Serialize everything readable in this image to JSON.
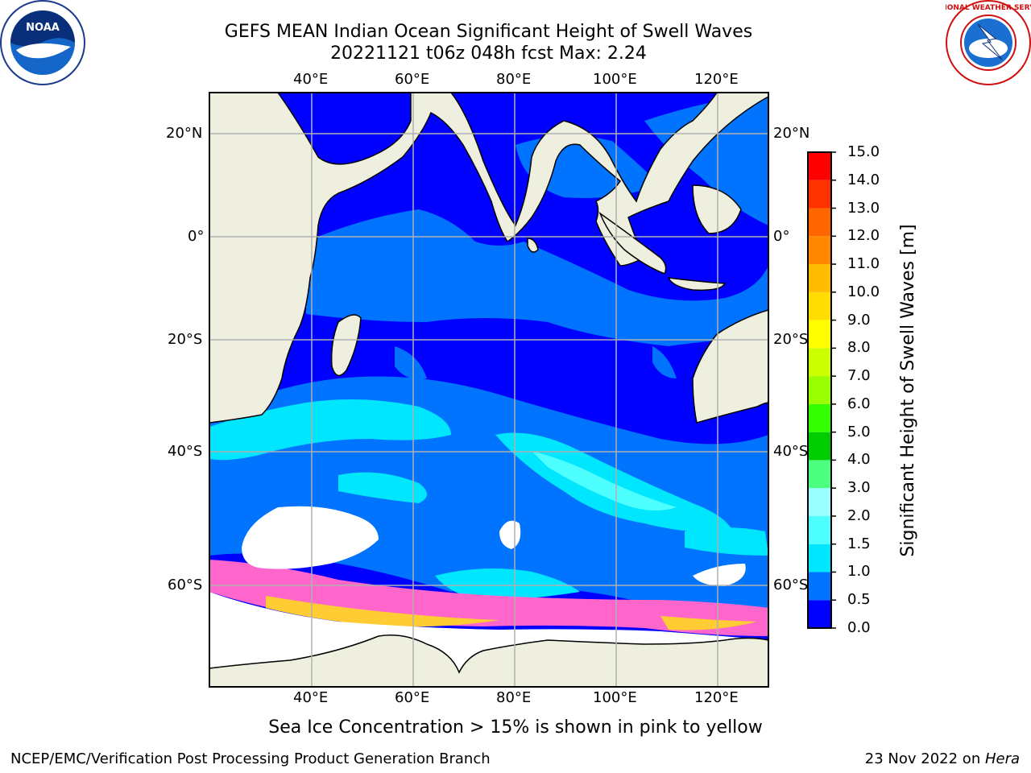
{
  "title": {
    "line1": "GEFS MEAN Indian Ocean Significant Height of Swell Waves",
    "line2": "20221121 t06z 048h fcst   Max: 2.24"
  },
  "map": {
    "lon_ticks": [
      "40°E",
      "60°E",
      "80°E",
      "100°E",
      "120°E"
    ],
    "lat_ticks": [
      "20°N",
      "0°",
      "20°S",
      "40°S",
      "60°S"
    ],
    "lon_range": [
      20,
      130
    ],
    "lat_range": [
      -72,
      28
    ],
    "grid": true,
    "colors": {
      "land": "#efefdf",
      "ice_free_sea_ice_white": "#ffffff",
      "gridline": "#b0b0b0",
      "sea_ice_pink": "#ff66cc",
      "sea_ice_yellow": "#ffcc33"
    }
  },
  "colorbar": {
    "label": "Significant Height of Swell Waves [m]",
    "levels": [
      "0.0",
      "0.5",
      "1.0",
      "1.5",
      "2.0",
      "3.0",
      "4.0",
      "5.0",
      "6.0",
      "7.0",
      "8.0",
      "9.0",
      "10.0",
      "11.0",
      "12.0",
      "13.0",
      "14.0",
      "15.0"
    ],
    "colors": [
      "#0000ff",
      "#0073ff",
      "#00e6ff",
      "#4dffff",
      "#99ffff",
      "#4dff80",
      "#00cc00",
      "#33ff00",
      "#99ff00",
      "#ccff00",
      "#ffff00",
      "#ffdd00",
      "#ffbb00",
      "#ff8800",
      "#ff6600",
      "#ff3300",
      "#ff0000"
    ]
  },
  "note": "Sea Ice Concentration > 15% is shown in pink to yellow",
  "footer": {
    "left": "NCEP/EMC/Verification Post Processing Product Generation Branch",
    "right_date": "23 Nov 2022 on ",
    "right_host": "Hera"
  },
  "logos": {
    "left": "noaa-logo",
    "right": "nws-logo"
  }
}
